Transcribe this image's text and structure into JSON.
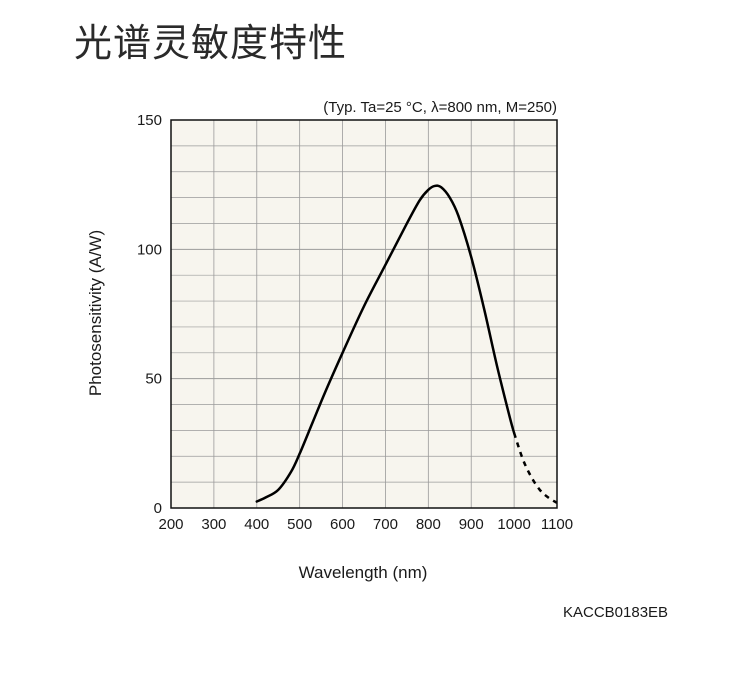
{
  "page_title": "光谱灵敏度特性",
  "figure_code": "KACCB0183EB",
  "colors": {
    "plot_background": "#f7f5ee",
    "grid": "#9a9a9a",
    "curve": "#000000"
  },
  "chart_data": {
    "type": "line",
    "subtitle": "(Typ. Ta=25 °C, λ=800 nm, M=250)",
    "xlabel": "Wavelength (nm)",
    "ylabel": "Photosensitivity (A/W)",
    "xlim": [
      200,
      1100
    ],
    "ylim": [
      0,
      150
    ],
    "x_ticks": [
      200,
      300,
      400,
      500,
      600,
      700,
      800,
      900,
      1000,
      1100
    ],
    "y_ticks": [
      0,
      50,
      100,
      150
    ],
    "x_minor_step": 100,
    "y_minor_step": 10,
    "grid": true,
    "series": [
      {
        "style": "solid",
        "x": [
          400,
          420,
          450,
          480,
          500,
          530,
          560,
          600,
          650,
          700,
          750,
          780,
          800,
          815,
          830,
          850,
          870,
          900,
          930,
          960,
          990,
          1000
        ],
        "y": [
          2.5,
          4,
          7,
          14,
          21,
          33,
          45,
          60,
          78,
          94,
          110,
          119,
          123,
          124.5,
          124,
          120,
          113,
          97,
          77,
          55,
          35,
          29
        ]
      },
      {
        "style": "dashed",
        "x": [
          1000,
          1020,
          1040,
          1060,
          1080,
          1100
        ],
        "y": [
          29,
          19,
          12,
          7,
          4,
          2
        ]
      }
    ]
  }
}
